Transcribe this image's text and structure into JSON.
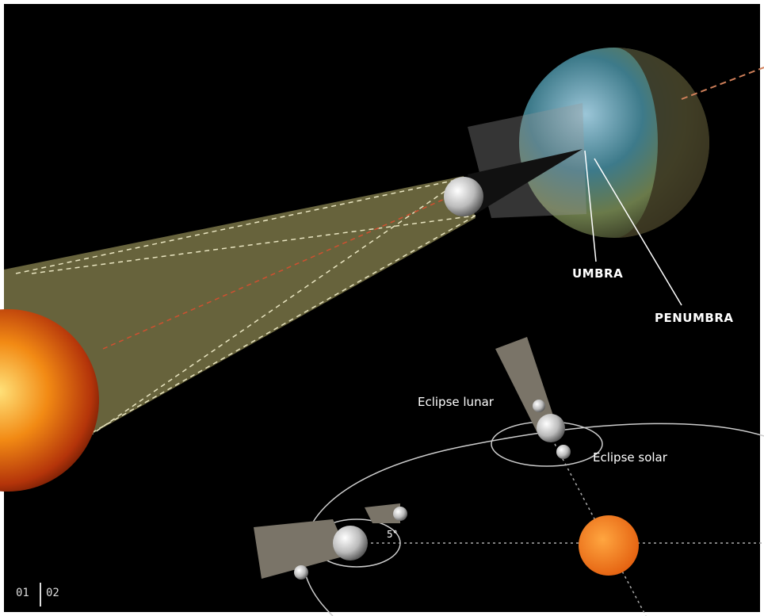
{
  "labels": {
    "umbra": "UMBRA",
    "penumbra": "PENUMBRA",
    "eclipse_lunar": "Eclipse lunar",
    "eclipse_solar": "Eclipse solar",
    "angle": "5°"
  },
  "pagination": [
    "01",
    "02"
  ]
}
